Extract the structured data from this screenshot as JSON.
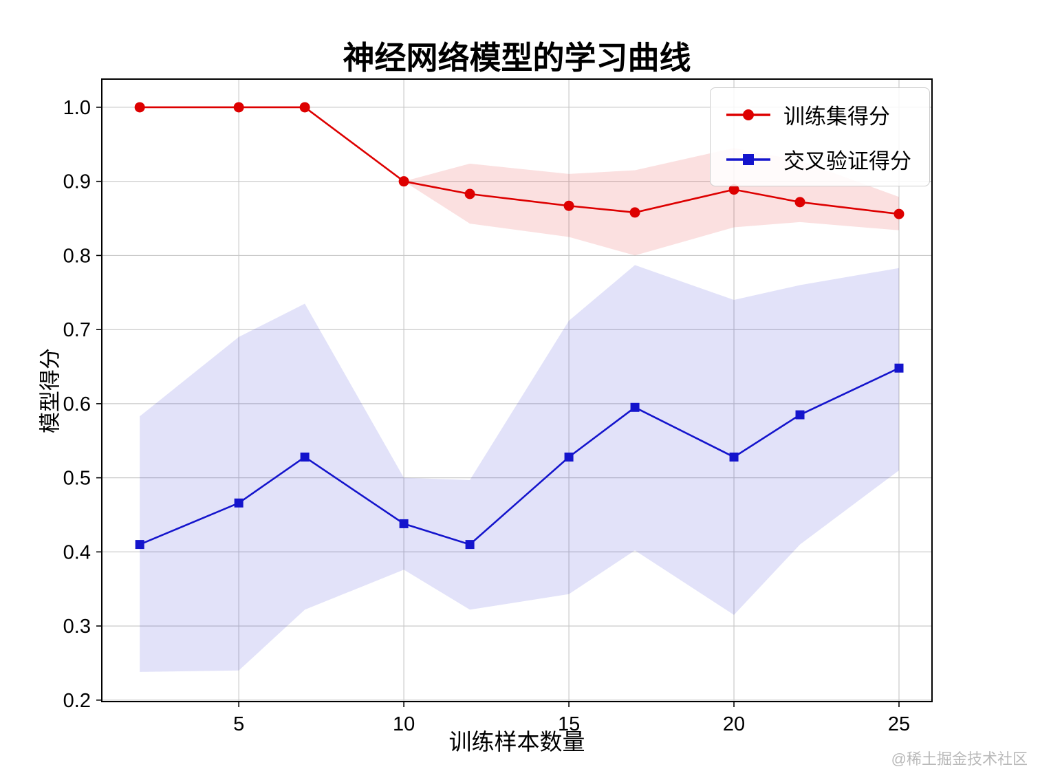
{
  "watermark": "@稀土掘金技术社区",
  "chart_data": {
    "type": "line",
    "title": "神经网络模型的学习曲线",
    "xlabel": "训练样本数量",
    "ylabel": "模型得分",
    "grid": true,
    "legend_position": "upper right",
    "xlim": [
      0.85,
      26.0
    ],
    "ylim": [
      0.198,
      1.038
    ],
    "x_ticks": [
      5,
      10,
      15,
      20,
      25
    ],
    "y_ticks": [
      0.2,
      0.3,
      0.4,
      0.5,
      0.6,
      0.7,
      0.8,
      0.9,
      1.0
    ],
    "x": [
      2,
      5,
      7,
      10,
      12,
      15,
      17,
      20,
      22,
      25
    ],
    "series": [
      {
        "name": "训练集得分",
        "color": "#dd0000",
        "marker": "circle",
        "band_opacity": 0.12,
        "values": [
          1.0,
          1.0,
          1.0,
          0.9,
          0.883,
          0.867,
          0.858,
          0.889,
          0.872,
          0.856
        ],
        "band_low": [
          1.0,
          1.0,
          1.0,
          0.9,
          0.843,
          0.825,
          0.8,
          0.838,
          0.845,
          0.834
        ],
        "band_high": [
          1.0,
          1.0,
          1.0,
          0.9,
          0.924,
          0.91,
          0.915,
          0.945,
          0.928,
          0.879
        ]
      },
      {
        "name": "交叉验证得分",
        "color": "#1414cc",
        "marker": "square",
        "band_opacity": 0.12,
        "values": [
          0.41,
          0.466,
          0.528,
          0.438,
          0.41,
          0.528,
          0.595,
          0.528,
          0.585,
          0.648
        ],
        "band_low": [
          0.238,
          0.24,
          0.322,
          0.376,
          0.322,
          0.343,
          0.402,
          0.315,
          0.41,
          0.51
        ],
        "band_high": [
          0.583,
          0.69,
          0.735,
          0.5,
          0.497,
          0.712,
          0.787,
          0.74,
          0.76,
          0.783
        ]
      }
    ]
  }
}
